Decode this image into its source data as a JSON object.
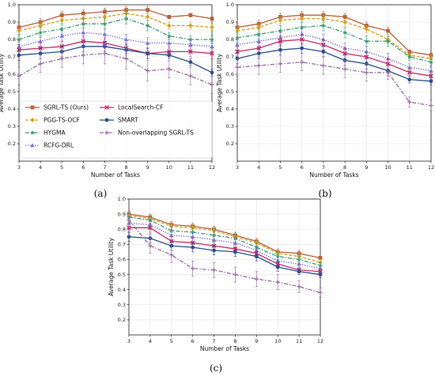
{
  "series_styles": [
    {
      "name": "SGRL-TS (Ours)",
      "color": "#b5623f",
      "dash": "",
      "marker": "square"
    },
    {
      "name": "PGG-TS-OCF",
      "color": "#d6a21f",
      "dash": "4,2",
      "marker": "diamond"
    },
    {
      "name": "HYGMA",
      "color": "#3a9e6c",
      "dash": "5,2,1.5,2",
      "marker": "star"
    },
    {
      "name": "RCFG-DRL",
      "color": "#7a78d6",
      "dash": "1.5,1.5",
      "marker": "triangle"
    },
    {
      "name": "LocalSearch-CF",
      "color": "#c02f6a",
      "dash": "",
      "marker": "x"
    },
    {
      "name": "SMART",
      "color": "#2c4f8c",
      "dash": "",
      "marker": "circle"
    },
    {
      "name": "Non-overlapping SGRL-TS",
      "color": "#9a6aa6",
      "dash": "5,2,1.5,2",
      "marker": "plus"
    }
  ],
  "chart_data": [
    {
      "type": "line",
      "panel_label": "(a)",
      "xlabel": "Number of Tasks",
      "ylabel": "Average Task Utility",
      "x": [
        3,
        4,
        5,
        6,
        7,
        8,
        9,
        10,
        11,
        12
      ],
      "xlim": [
        3,
        12
      ],
      "ylim": [
        0.1,
        1.0
      ],
      "yticks": [
        "0.2",
        "0.3",
        "0.4",
        "0.5",
        "0.6",
        "0.7",
        "0.8",
        "0.9",
        "1.0"
      ],
      "xticks": [
        "3",
        "4",
        "5",
        "6",
        "7",
        "8",
        "9",
        "10",
        "11",
        "12"
      ],
      "legend": "lower-left",
      "series": [
        {
          "name": "SGRL-TS (Ours)",
          "values": [
            0.87,
            0.9,
            0.94,
            0.95,
            0.96,
            0.97,
            0.97,
            0.93,
            0.94,
            0.92
          ],
          "err": [
            0.02,
            0.02,
            0.02,
            0.02,
            0.02,
            0.02,
            0.02,
            0.01,
            0.01,
            0.01
          ]
        },
        {
          "name": "PGG-TS-OCF",
          "values": [
            0.85,
            0.88,
            0.91,
            0.92,
            0.93,
            0.95,
            0.93,
            0.88,
            0.88,
            0.87
          ],
          "err": [
            0.02,
            0.02,
            0.02,
            0.02,
            0.02,
            0.02,
            0.02,
            0.02,
            0.02,
            0.02
          ]
        },
        {
          "name": "HYGMA",
          "values": [
            0.8,
            0.84,
            0.86,
            0.89,
            0.89,
            0.92,
            0.88,
            0.82,
            0.8,
            0.8
          ],
          "err": [
            0.03,
            0.03,
            0.03,
            0.03,
            0.03,
            0.03,
            0.03,
            0.02,
            0.02,
            0.02
          ]
        },
        {
          "name": "RCFG-DRL",
          "values": [
            0.76,
            0.79,
            0.82,
            0.84,
            0.83,
            0.8,
            0.78,
            0.78,
            0.77,
            0.76
          ],
          "err": [
            0.03,
            0.03,
            0.03,
            0.03,
            0.03,
            0.03,
            0.03,
            0.03,
            0.03,
            0.03
          ]
        },
        {
          "name": "LocalSearch-CF",
          "values": [
            0.74,
            0.75,
            0.76,
            0.79,
            0.78,
            0.75,
            0.72,
            0.73,
            0.73,
            0.72
          ],
          "err": [
            0.03,
            0.03,
            0.03,
            0.03,
            0.03,
            0.03,
            0.03,
            0.03,
            0.03,
            0.03
          ]
        },
        {
          "name": "SMART",
          "values": [
            0.71,
            0.72,
            0.73,
            0.76,
            0.76,
            0.74,
            0.72,
            0.71,
            0.67,
            0.61
          ],
          "err": [
            0.03,
            0.03,
            0.03,
            0.03,
            0.03,
            0.03,
            0.03,
            0.02,
            0.02,
            0.02
          ]
        },
        {
          "name": "Non-overlapping SGRL-TS",
          "values": [
            0.59,
            0.66,
            0.69,
            0.71,
            0.72,
            0.69,
            0.62,
            0.63,
            0.59,
            0.54
          ],
          "err": [
            0.05,
            0.05,
            0.05,
            0.05,
            0.06,
            0.06,
            0.06,
            0.05,
            0.05,
            0.05
          ]
        }
      ]
    },
    {
      "type": "line",
      "panel_label": "(b)",
      "xlabel": "Number of Tasks",
      "ylabel": "Average Task Utility",
      "x": [
        3,
        4,
        5,
        6,
        7,
        8,
        9,
        10,
        11,
        12
      ],
      "xlim": [
        3,
        12
      ],
      "ylim": [
        0.1,
        1.0
      ],
      "yticks": [
        "0.2",
        "0.3",
        "0.4",
        "0.5",
        "0.6",
        "0.7",
        "0.8",
        "0.9",
        "1.0"
      ],
      "xticks": [
        "3",
        "4",
        "5",
        "6",
        "7",
        "8",
        "9",
        "10",
        "11",
        "12"
      ],
      "series": [
        {
          "name": "SGRL-TS (Ours)",
          "values": [
            0.87,
            0.89,
            0.93,
            0.94,
            0.94,
            0.93,
            0.88,
            0.85,
            0.73,
            0.71
          ],
          "err": [
            0.02,
            0.02,
            0.02,
            0.02,
            0.02,
            0.02,
            0.02,
            0.02,
            0.01,
            0.01
          ]
        },
        {
          "name": "PGG-TS-OCF",
          "values": [
            0.85,
            0.87,
            0.91,
            0.92,
            0.92,
            0.9,
            0.86,
            0.8,
            0.71,
            0.69
          ],
          "err": [
            0.02,
            0.02,
            0.02,
            0.02,
            0.02,
            0.02,
            0.02,
            0.02,
            0.02,
            0.02
          ]
        },
        {
          "name": "HYGMA",
          "values": [
            0.81,
            0.83,
            0.85,
            0.87,
            0.88,
            0.84,
            0.79,
            0.79,
            0.7,
            0.67
          ],
          "err": [
            0.03,
            0.03,
            0.03,
            0.03,
            0.03,
            0.03,
            0.03,
            0.03,
            0.02,
            0.02
          ]
        },
        {
          "name": "RCFG-DRL",
          "values": [
            0.77,
            0.79,
            0.81,
            0.83,
            0.8,
            0.75,
            0.73,
            0.69,
            0.64,
            0.62
          ],
          "err": [
            0.03,
            0.03,
            0.03,
            0.03,
            0.03,
            0.03,
            0.03,
            0.03,
            0.02,
            0.02
          ]
        },
        {
          "name": "LocalSearch-CF",
          "values": [
            0.73,
            0.75,
            0.79,
            0.8,
            0.77,
            0.72,
            0.7,
            0.66,
            0.61,
            0.59
          ],
          "err": [
            0.03,
            0.03,
            0.03,
            0.03,
            0.03,
            0.03,
            0.03,
            0.03,
            0.02,
            0.02
          ]
        },
        {
          "name": "SMART",
          "values": [
            0.69,
            0.72,
            0.74,
            0.75,
            0.73,
            0.68,
            0.66,
            0.62,
            0.57,
            0.56
          ],
          "err": [
            0.03,
            0.03,
            0.03,
            0.03,
            0.03,
            0.03,
            0.03,
            0.03,
            0.02,
            0.02
          ]
        },
        {
          "name": "Non-overlapping SGRL-TS",
          "values": [
            0.64,
            0.65,
            0.66,
            0.67,
            0.65,
            0.63,
            0.61,
            0.61,
            0.44,
            0.42
          ],
          "err": [
            0.05,
            0.05,
            0.05,
            0.05,
            0.05,
            0.05,
            0.05,
            0.04,
            0.03,
            0.03
          ]
        }
      ]
    },
    {
      "type": "line",
      "panel_label": "(c)",
      "xlabel": "Number of Tasks",
      "ylabel": "Average Task Utility",
      "x": [
        3,
        4,
        5,
        6,
        7,
        8,
        9,
        10,
        11,
        12
      ],
      "xlim": [
        3,
        12
      ],
      "ylim": [
        0.1,
        1.0
      ],
      "yticks": [
        "0.2",
        "0.3",
        "0.4",
        "0.5",
        "0.6",
        "0.7",
        "0.8",
        "0.9",
        "1.0"
      ],
      "xticks": [
        "3",
        "4",
        "5",
        "6",
        "7",
        "8",
        "9",
        "10",
        "11",
        "12"
      ],
      "series": [
        {
          "name": "SGRL-TS (Ours)",
          "values": [
            0.9,
            0.88,
            0.83,
            0.82,
            0.8,
            0.76,
            0.72,
            0.65,
            0.64,
            0.61
          ],
          "err": [
            0.02,
            0.02,
            0.02,
            0.02,
            0.02,
            0.02,
            0.02,
            0.02,
            0.02,
            0.01
          ]
        },
        {
          "name": "PGG-TS-OCF",
          "values": [
            0.89,
            0.87,
            0.82,
            0.81,
            0.79,
            0.75,
            0.71,
            0.64,
            0.62,
            0.58
          ],
          "err": [
            0.02,
            0.02,
            0.02,
            0.02,
            0.02,
            0.02,
            0.02,
            0.02,
            0.02,
            0.02
          ]
        },
        {
          "name": "HYGMA",
          "values": [
            0.88,
            0.86,
            0.79,
            0.78,
            0.76,
            0.74,
            0.68,
            0.62,
            0.6,
            0.56
          ],
          "err": [
            0.03,
            0.03,
            0.03,
            0.03,
            0.03,
            0.03,
            0.03,
            0.03,
            0.02,
            0.02
          ]
        },
        {
          "name": "RCFG-DRL",
          "values": [
            0.84,
            0.83,
            0.76,
            0.75,
            0.73,
            0.71,
            0.66,
            0.59,
            0.57,
            0.54
          ],
          "err": [
            0.03,
            0.03,
            0.03,
            0.03,
            0.03,
            0.03,
            0.03,
            0.03,
            0.02,
            0.02
          ]
        },
        {
          "name": "LocalSearch-CF",
          "values": [
            0.81,
            0.81,
            0.72,
            0.71,
            0.69,
            0.67,
            0.64,
            0.57,
            0.53,
            0.52
          ],
          "err": [
            0.03,
            0.03,
            0.03,
            0.03,
            0.03,
            0.03,
            0.03,
            0.03,
            0.02,
            0.02
          ]
        },
        {
          "name": "SMART",
          "values": [
            0.75,
            0.74,
            0.69,
            0.68,
            0.66,
            0.65,
            0.62,
            0.55,
            0.52,
            0.5
          ],
          "err": [
            0.03,
            0.03,
            0.03,
            0.03,
            0.03,
            0.03,
            0.03,
            0.03,
            0.02,
            0.02
          ]
        },
        {
          "name": "Non-overlapping SGRL-TS",
          "values": [
            0.86,
            0.69,
            0.63,
            0.54,
            0.53,
            0.5,
            0.47,
            0.45,
            0.42,
            0.38
          ],
          "err": [
            0.05,
            0.05,
            0.05,
            0.05,
            0.05,
            0.05,
            0.05,
            0.05,
            0.04,
            0.03
          ]
        }
      ]
    }
  ]
}
